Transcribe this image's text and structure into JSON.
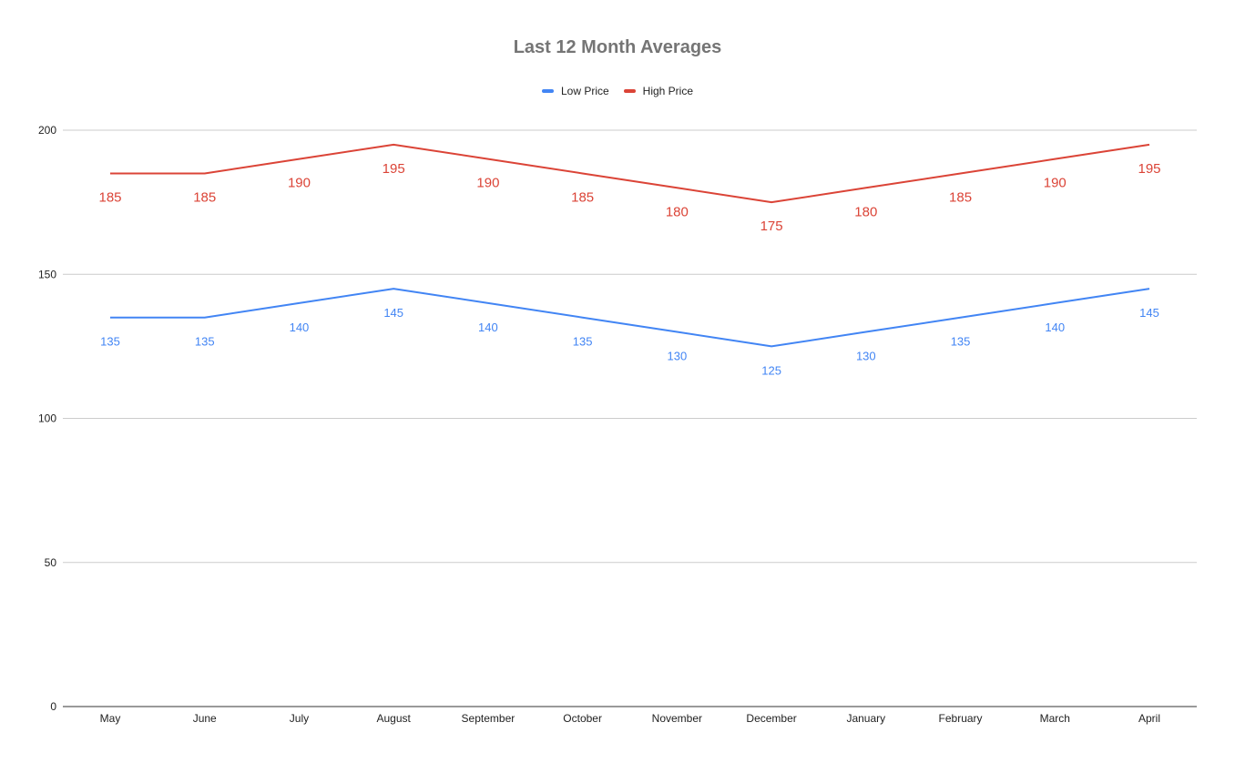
{
  "chart_data": {
    "type": "line",
    "title": "Last 12 Month Averages",
    "xlabel": "",
    "ylabel": "",
    "categories": [
      "May",
      "June",
      "July",
      "August",
      "September",
      "October",
      "November",
      "December",
      "January",
      "February",
      "March",
      "April"
    ],
    "series": [
      {
        "name": "Low Price",
        "color": "#4285f4",
        "values": [
          135,
          135,
          140,
          145,
          140,
          135,
          130,
          125,
          130,
          135,
          140,
          145
        ]
      },
      {
        "name": "High Price",
        "color": "#db4437",
        "values": [
          185,
          185,
          190,
          195,
          190,
          185,
          180,
          175,
          180,
          185,
          190,
          195
        ]
      }
    ],
    "ylim": [
      0,
      200
    ],
    "yticks": [
      0,
      50,
      100,
      150,
      200
    ],
    "grid": true,
    "legend_position": "top",
    "data_labels": true
  }
}
